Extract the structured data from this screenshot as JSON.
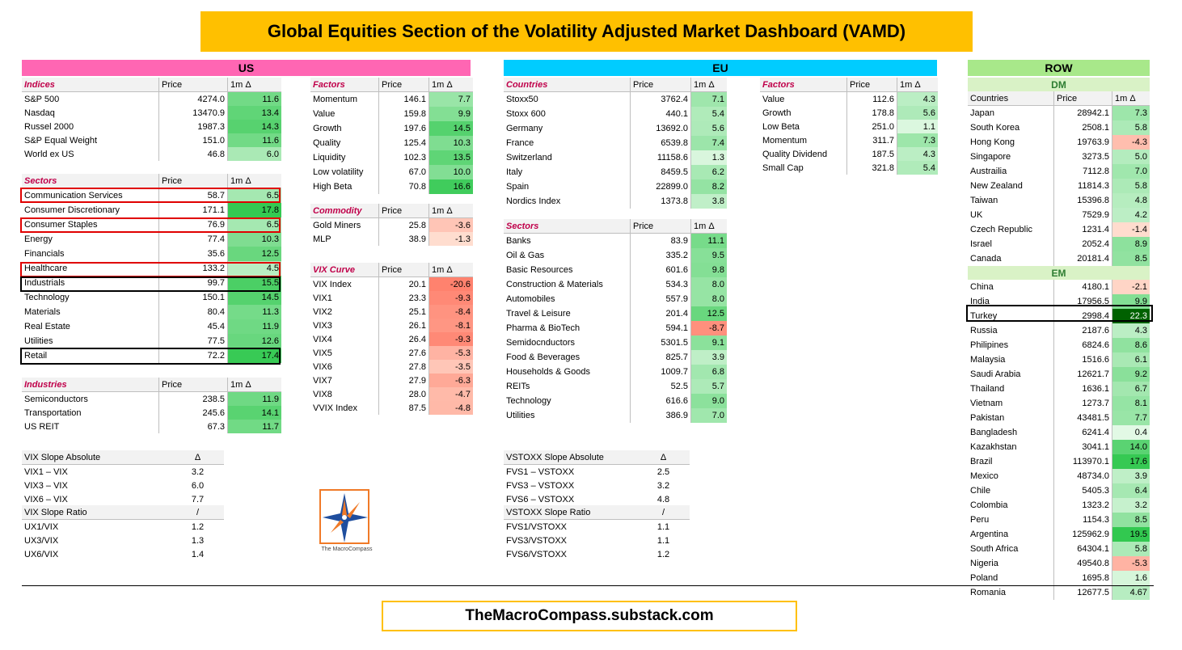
{
  "title": "Global Equities Section of the Volatility Adjusted Market Dashboard (VAMD)",
  "footer": "TheMacroCompass.substack.com",
  "regions": {
    "us": "US",
    "eu": "EU",
    "row": "ROW"
  },
  "logo_text": "The MacroCompass",
  "colors": {
    "title_bg": "#FFC000",
    "us_bar": "#FF66B3",
    "eu_bar": "#00CCFF",
    "row_bar": "#A8E88A",
    "outline_red": "#E00000"
  },
  "us": {
    "indices": {
      "header": [
        "Indices",
        "Price",
        "1m  Δ"
      ],
      "rows": [
        [
          "S&P  500",
          "4274.0",
          "11.6"
        ],
        [
          "Nasdaq",
          "13470.9",
          "13.4"
        ],
        [
          "Russel  2000",
          "1987.3",
          "14.3"
        ],
        [
          "S&P  Equal  Weight",
          "151.0",
          "11.6"
        ],
        [
          "World  ex  US",
          "46.8",
          "6.0"
        ]
      ]
    },
    "sectors": {
      "header": [
        "Sectors",
        "Price",
        "1m  Δ"
      ],
      "rows": [
        [
          "Communication  Services",
          "58.7",
          "6.5"
        ],
        [
          "Consumer  Discretionary",
          "171.1",
          "17.8"
        ],
        [
          "Consumer  Staples",
          "76.9",
          "6.5"
        ],
        [
          "Energy",
          "77.4",
          "10.3"
        ],
        [
          "Financials",
          "35.6",
          "12.5"
        ],
        [
          "Healthcare",
          "133.2",
          "4.5"
        ],
        [
          "Industrials",
          "99.7",
          "15.5"
        ],
        [
          "Technology",
          "150.1",
          "14.5"
        ],
        [
          "Materials",
          "80.4",
          "11.3"
        ],
        [
          "Real  Estate",
          "45.4",
          "11.9"
        ],
        [
          "Utilities",
          "77.5",
          "12.6"
        ],
        [
          "Retail",
          "72.2",
          "17.4"
        ]
      ]
    },
    "industries": {
      "header": [
        "Industries",
        "Price",
        "1m  Δ"
      ],
      "rows": [
        [
          "Semiconductors",
          "238.5",
          "11.9"
        ],
        [
          "Transportation",
          "245.6",
          "14.1"
        ],
        [
          "US  REIT",
          "67.3",
          "11.7"
        ]
      ]
    },
    "factors": {
      "header": [
        "Factors",
        "Price",
        "1m  Δ"
      ],
      "rows": [
        [
          "Momentum",
          "146.1",
          "7.7"
        ],
        [
          "Value",
          "159.8",
          "9.9"
        ],
        [
          "Growth",
          "197.6",
          "14.5"
        ],
        [
          "Quality",
          "125.4",
          "10.3"
        ],
        [
          "Liquidity",
          "102.3",
          "13.5"
        ],
        [
          "Low  volatility",
          "67.0",
          "10.0"
        ],
        [
          "High  Beta",
          "70.8",
          "16.6"
        ]
      ]
    },
    "commodity": {
      "header": [
        "Commodity",
        "Price",
        "1m  Δ"
      ],
      "rows": [
        [
          "Gold  Miners",
          "25.8",
          "-3.6"
        ],
        [
          "MLP",
          "38.9",
          "-1.3"
        ]
      ]
    },
    "vix_curve": {
      "header": [
        "VIX  Curve",
        "Price",
        "1m  Δ"
      ],
      "rows": [
        [
          "VIX  Index",
          "20.1",
          "-20.6"
        ],
        [
          "VIX1",
          "23.3",
          "-9.3"
        ],
        [
          "VIX2",
          "25.1",
          "-8.4"
        ],
        [
          "VIX3",
          "26.1",
          "-8.1"
        ],
        [
          "VIX4",
          "26.4",
          "-9.3"
        ],
        [
          "VIX5",
          "27.6",
          "-5.3"
        ],
        [
          "VIX6",
          "27.8",
          "-3.5"
        ],
        [
          "VIX7",
          "27.9",
          "-6.3"
        ],
        [
          "VIX8",
          "28.0",
          "-4.7"
        ],
        [
          "VVIX  Index",
          "87.5",
          "-4.8"
        ]
      ]
    },
    "vix_slope_abs": {
      "header": [
        "VIX  Slope  Absolute",
        "Δ"
      ],
      "rows": [
        [
          "VIX1    –  VIX",
          "3.2"
        ],
        [
          "VIX3  –  VIX",
          "6.0"
        ],
        [
          "VIX6  –  VIX",
          "7.7"
        ]
      ]
    },
    "vix_slope_ratio": {
      "header": [
        "VIX  Slope  Ratio",
        "/"
      ],
      "rows": [
        [
          "UX1/VIX",
          "1.2"
        ],
        [
          "UX3/VIX",
          "1.3"
        ],
        [
          "UX6/VIX",
          "1.4"
        ]
      ]
    }
  },
  "eu": {
    "countries": {
      "header": [
        "Countries",
        "Price",
        "1m  Δ"
      ],
      "rows": [
        [
          "Stoxx50",
          "3762.4",
          "7.1"
        ],
        [
          "Stoxx  600",
          "440.1",
          "5.4"
        ],
        [
          "Germany",
          "13692.0",
          "5.6"
        ],
        [
          "France",
          "6539.8",
          "7.4"
        ],
        [
          "Switzerland",
          "11158.6",
          "1.3"
        ],
        [
          "Italy",
          "8459.5",
          "6.2"
        ],
        [
          "Spain",
          "22899.0",
          "8.2"
        ],
        [
          "Nordics  Index",
          "1373.8",
          "3.8"
        ]
      ]
    },
    "factors": {
      "header": [
        "Factors",
        "Price",
        "1m  Δ"
      ],
      "rows": [
        [
          "Value",
          "112.6",
          "4.3"
        ],
        [
          "Growth",
          "178.8",
          "5.6"
        ],
        [
          "Low  Beta",
          "251.0",
          "1.1"
        ],
        [
          "Momentum",
          "311.7",
          "7.3"
        ],
        [
          "Quality  Dividend",
          "187.5",
          "4.3"
        ],
        [
          "Small  Cap",
          "321.8",
          "5.4"
        ]
      ]
    },
    "sectors": {
      "header": [
        "Sectors",
        "Price",
        "1m  Δ"
      ],
      "rows": [
        [
          "Banks",
          "83.9",
          "11.1"
        ],
        [
          "Oil  &  Gas",
          "335.2",
          "9.5"
        ],
        [
          "Basic  Resources",
          "601.6",
          "9.8"
        ],
        [
          "Construction  &  Materials",
          "534.3",
          "8.0"
        ],
        [
          "Automobiles",
          "557.9",
          "8.0"
        ],
        [
          "Travel  &  Leisure",
          "201.4",
          "12.5"
        ],
        [
          "Pharma  &  BioTech",
          "594.1",
          "-8.7"
        ],
        [
          "Semidocnductors",
          "5301.5",
          "9.1"
        ],
        [
          "Food  &  Beverages",
          "825.7",
          "3.9"
        ],
        [
          "Households  &  Goods",
          "1009.7",
          "6.8"
        ],
        [
          "REITs",
          "52.5",
          "5.7"
        ],
        [
          "Technology",
          "616.6",
          "9.0"
        ],
        [
          "Utilities",
          "386.9",
          "7.0"
        ]
      ]
    },
    "vstoxx_slope_abs": {
      "header": [
        "VSTOXX  Slope  Absolute",
        "Δ"
      ],
      "rows": [
        [
          "FVS1  –  VSTOXX",
          "2.5"
        ],
        [
          "FVS3  –  VSTOXX",
          "3.2"
        ],
        [
          "FVS6  –  VSTOXX",
          "4.8"
        ]
      ]
    },
    "vstoxx_slope_ratio": {
      "header": [
        "VSTOXX  Slope  Ratio",
        "/"
      ],
      "rows": [
        [
          "FVS1/VSTOXX",
          "1.1"
        ],
        [
          "FVS3/VSTOXX",
          "1.1"
        ],
        [
          "FVS6/VSTOXX",
          "1.2"
        ]
      ]
    }
  },
  "row": {
    "dm_label": "DM",
    "em_label": "EM",
    "header": [
      "Countries",
      "Price",
      "1m  Δ"
    ],
    "dm": [
      [
        "Japan",
        "28942.1",
        "7.3"
      ],
      [
        "South  Korea",
        "2508.1",
        "5.8"
      ],
      [
        "Hong  Kong",
        "19763.9",
        "-4.3"
      ],
      [
        "Singapore",
        "3273.5",
        "5.0"
      ],
      [
        "Austrailia",
        "7112.8",
        "7.0"
      ],
      [
        "New  Zealand",
        "11814.3",
        "5.8"
      ],
      [
        "Taiwan",
        "15396.8",
        "4.8"
      ],
      [
        "UK",
        "7529.9",
        "4.2"
      ],
      [
        "Czech  Republic",
        "1231.4",
        "-1.4"
      ],
      [
        "Israel",
        "2052.4",
        "8.9"
      ],
      [
        "Canada",
        "20181.4",
        "8.5"
      ]
    ],
    "em": [
      [
        "China",
        "4180.1",
        "-2.1"
      ],
      [
        "India",
        "17956.5",
        "9.9"
      ],
      [
        "Turkey",
        "2998.4",
        "22.3"
      ],
      [
        "Russia",
        "2187.6",
        "4.3"
      ],
      [
        "Philipines",
        "6824.6",
        "8.6"
      ],
      [
        "Malaysia",
        "1516.6",
        "6.1"
      ],
      [
        "Saudi  Arabia",
        "12621.7",
        "9.2"
      ],
      [
        "Thailand",
        "1636.1",
        "6.7"
      ],
      [
        "Vietnam",
        "1273.7",
        "8.1"
      ],
      [
        "Pakistan",
        "43481.5",
        "7.7"
      ],
      [
        "Bangladesh",
        "6241.4",
        "0.4"
      ],
      [
        "Kazakhstan",
        "3041.1",
        "14.0"
      ],
      [
        "Brazil",
        "113970.1",
        "17.6"
      ],
      [
        "Mexico",
        "48734.0",
        "3.9"
      ],
      [
        "Chile",
        "5405.3",
        "6.4"
      ],
      [
        "Colombia",
        "1323.2",
        "3.2"
      ],
      [
        "Peru",
        "1154.3",
        "8.5"
      ],
      [
        "Argentina",
        "125962.9",
        "19.5"
      ],
      [
        "South  Africa",
        "64304.1",
        "5.8"
      ],
      [
        "Nigeria",
        "49540.8",
        "-5.3"
      ],
      [
        "Poland",
        "1695.8",
        "1.6"
      ],
      [
        "Romania",
        "12677.5",
        "4.67"
      ]
    ]
  }
}
